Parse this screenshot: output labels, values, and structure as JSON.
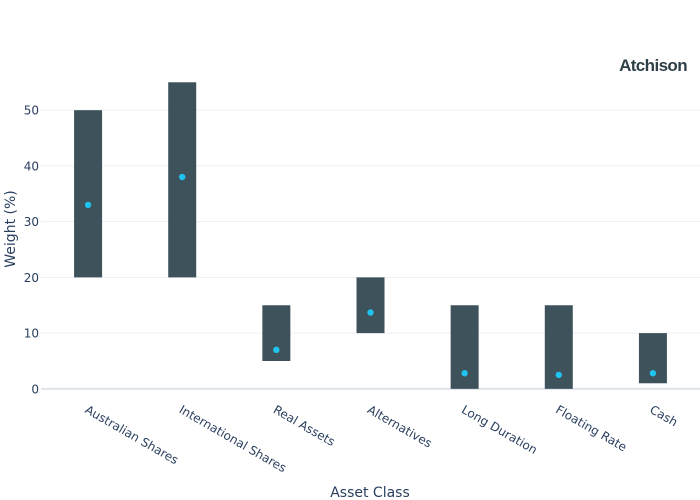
{
  "brand": {
    "name": "Atchison",
    "color": "#2e3f48"
  },
  "chart_data": {
    "type": "range-bar",
    "xlabel": "Asset Class",
    "ylabel": "Weight (%)",
    "ylim": [
      -2,
      59
    ],
    "yticks": [
      0,
      10,
      20,
      30,
      40,
      50
    ],
    "grid": true,
    "categories": [
      "Australian Shares",
      "International Shares",
      "Real Assets",
      "Alternatives",
      "Long Duration",
      "Floating Rate",
      "Cash"
    ],
    "ranges": [
      {
        "min": 20,
        "max": 50
      },
      {
        "min": 20,
        "max": 55
      },
      {
        "min": 5,
        "max": 15
      },
      {
        "min": 10,
        "max": 20
      },
      {
        "min": 0,
        "max": 15
      },
      {
        "min": 0,
        "max": 15
      },
      {
        "min": 1,
        "max": 10
      }
    ],
    "points": [
      33,
      38,
      7,
      13.7,
      2.8,
      2.5,
      2.8
    ],
    "colors": {
      "bar": "#3e525c",
      "point": "#1ec4ef",
      "grid": "#eceff3",
      "zeroline": "#dfe3ea",
      "text": "#2a3f5f"
    }
  }
}
